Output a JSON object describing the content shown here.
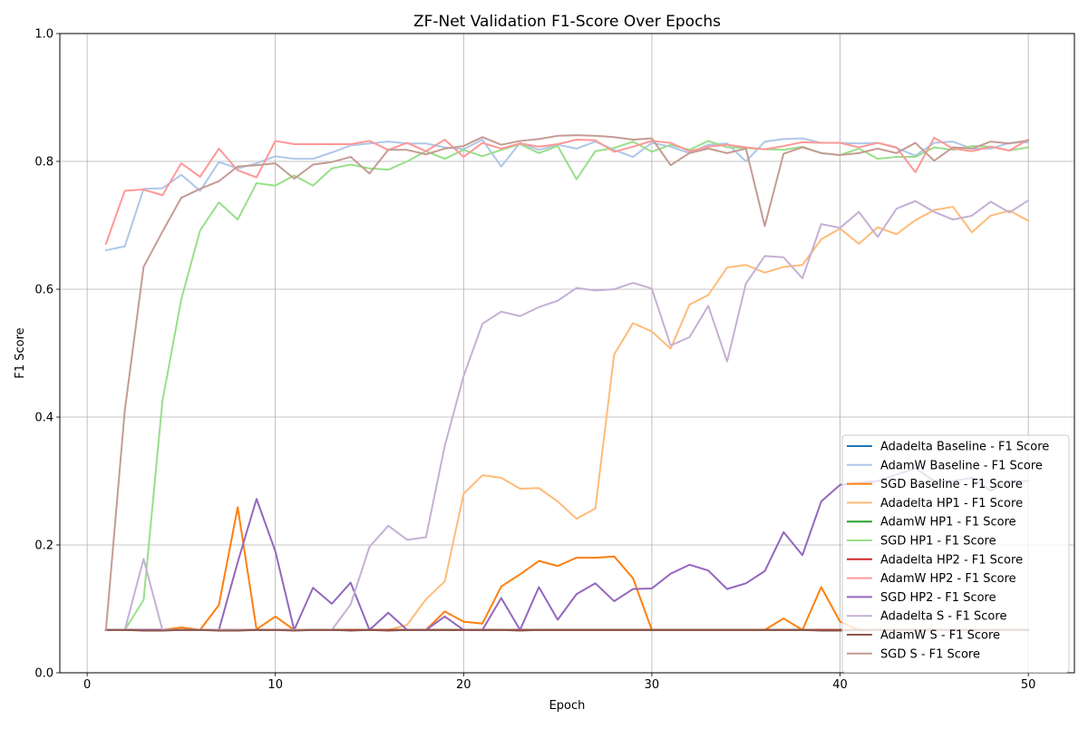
{
  "chart_data": {
    "type": "line",
    "title": "ZF-Net Validation F1-Score Over Epochs",
    "xlabel": "Epoch",
    "ylabel": "F1 Score",
    "xlim": [
      -1.45,
      52.45
    ],
    "ylim": [
      0,
      1
    ],
    "xticks": [
      0,
      10,
      20,
      30,
      40,
      50
    ],
    "yticks": [
      0.0,
      0.2,
      0.4,
      0.6,
      0.8,
      1.0
    ],
    "xtick_labels": [
      "0",
      "10",
      "20",
      "30",
      "40",
      "50"
    ],
    "ytick_labels": [
      "0.0",
      "0.2",
      "0.4",
      "0.6",
      "0.8",
      "1.0"
    ],
    "grid": true,
    "legend_position": "bottom-right",
    "x": [
      1,
      2,
      3,
      4,
      5,
      6,
      7,
      8,
      9,
      10,
      11,
      12,
      13,
      14,
      15,
      16,
      17,
      18,
      19,
      20,
      21,
      22,
      23,
      24,
      25,
      26,
      27,
      28,
      29,
      30,
      31,
      32,
      33,
      34,
      35,
      36,
      37,
      38,
      39,
      40,
      41,
      42,
      43,
      44,
      45,
      46,
      47,
      48,
      49,
      50
    ],
    "series": [
      {
        "name": "Adadelta Baseline - F1 Score",
        "color": "#1f77b4",
        "values": [
          0.067,
          0.067,
          0.067,
          0.067,
          0.067,
          0.067,
          0.067,
          0.067,
          0.067,
          0.067,
          0.067,
          0.067,
          0.067,
          0.067,
          0.067,
          0.067,
          0.067,
          0.067,
          0.067,
          0.067,
          0.067,
          0.067,
          0.067,
          0.067,
          0.067,
          0.067,
          0.067,
          0.067,
          0.067,
          0.067,
          0.067,
          0.067,
          0.067,
          0.067,
          0.067,
          0.067,
          0.067,
          0.067,
          0.067,
          0.067,
          0.067,
          0.067,
          0.067,
          0.067,
          0.067,
          0.067,
          0.067,
          0.067,
          0.067,
          0.067
        ]
      },
      {
        "name": "AdamW Baseline - F1 Score",
        "color": "#aec7e8",
        "values": [
          0.661,
          0.667,
          0.757,
          0.758,
          0.779,
          0.754,
          0.799,
          0.789,
          0.797,
          0.808,
          0.804,
          0.804,
          0.814,
          0.825,
          0.828,
          0.831,
          0.828,
          0.828,
          0.822,
          0.819,
          0.834,
          0.792,
          0.829,
          0.818,
          0.826,
          0.82,
          0.831,
          0.818,
          0.807,
          0.829,
          0.823,
          0.813,
          0.826,
          0.828,
          0.8,
          0.831,
          0.835,
          0.836,
          0.829,
          0.829,
          0.828,
          0.829,
          0.821,
          0.809,
          0.829,
          0.831,
          0.82,
          0.82,
          0.829,
          0.83
        ]
      },
      {
        "name": "SGD Baseline - F1 Score",
        "color": "#ff7f0e",
        "values": [
          0.067,
          0.067,
          0.067,
          0.067,
          0.071,
          0.067,
          0.106,
          0.259,
          0.068,
          0.088,
          0.067,
          0.067,
          0.067,
          0.067,
          0.067,
          0.067,
          0.067,
          0.067,
          0.096,
          0.08,
          0.077,
          0.135,
          0.154,
          0.175,
          0.167,
          0.18,
          0.18,
          0.182,
          0.148,
          0.067,
          0.067,
          0.067,
          0.067,
          0.067,
          0.067,
          0.067,
          0.085,
          0.067,
          0.134,
          0.08,
          0.067,
          0.067,
          0.067,
          0.067,
          0.067,
          0.067,
          0.067,
          0.067,
          0.067,
          0.067
        ]
      },
      {
        "name": "Adadelta HP1 - F1 Score",
        "color": "#ffbb78",
        "values": [
          0.067,
          0.067,
          0.067,
          0.067,
          0.067,
          0.067,
          0.067,
          0.067,
          0.067,
          0.067,
          0.067,
          0.067,
          0.067,
          0.067,
          0.067,
          0.067,
          0.075,
          0.115,
          0.143,
          0.28,
          0.309,
          0.305,
          0.288,
          0.289,
          0.268,
          0.241,
          0.257,
          0.498,
          0.547,
          0.534,
          0.507,
          0.576,
          0.591,
          0.634,
          0.638,
          0.626,
          0.635,
          0.638,
          0.678,
          0.695,
          0.671,
          0.697,
          0.686,
          0.708,
          0.724,
          0.729,
          0.689,
          0.715,
          0.723,
          0.707
        ]
      },
      {
        "name": "AdamW HP1 - F1 Score",
        "color": "#2ca02c",
        "values": [
          0.067,
          0.067,
          0.067,
          0.067,
          0.067,
          0.067,
          0.067,
          0.067,
          0.067,
          0.067,
          0.067,
          0.067,
          0.067,
          0.067,
          0.067,
          0.067,
          0.067,
          0.067,
          0.067,
          0.067,
          0.067,
          0.067,
          0.067,
          0.067,
          0.067,
          0.067,
          0.067,
          0.067,
          0.067,
          0.067,
          0.067,
          0.067,
          0.067,
          0.067,
          0.067,
          0.067,
          0.067,
          0.067,
          0.067,
          0.067,
          0.067,
          0.067,
          0.067,
          0.067,
          0.067,
          0.067,
          0.067,
          0.067,
          0.067,
          0.067
        ]
      },
      {
        "name": "SGD HP1 - F1 Score",
        "color": "#98df8a",
        "values": [
          0.067,
          0.067,
          0.114,
          0.425,
          0.584,
          0.692,
          0.736,
          0.709,
          0.766,
          0.762,
          0.778,
          0.762,
          0.789,
          0.795,
          0.789,
          0.787,
          0.8,
          0.816,
          0.804,
          0.818,
          0.808,
          0.818,
          0.827,
          0.813,
          0.824,
          0.772,
          0.816,
          0.821,
          0.831,
          0.815,
          0.826,
          0.818,
          0.832,
          0.822,
          0.821,
          0.819,
          0.818,
          0.823,
          0.813,
          0.81,
          0.82,
          0.804,
          0.807,
          0.807,
          0.822,
          0.818,
          0.824,
          0.823,
          0.817,
          0.822
        ]
      },
      {
        "name": "Adadelta HP2 - F1 Score",
        "color": "#d62728",
        "values": [
          0.067,
          0.067,
          0.067,
          0.067,
          0.067,
          0.067,
          0.067,
          0.067,
          0.067,
          0.067,
          0.067,
          0.067,
          0.067,
          0.067,
          0.067,
          0.067,
          0.067,
          0.067,
          0.067,
          0.067,
          0.067,
          0.067,
          0.067,
          0.067,
          0.067,
          0.067,
          0.067,
          0.067,
          0.067,
          0.067,
          0.067,
          0.067,
          0.067,
          0.067,
          0.067,
          0.067,
          0.067,
          0.067,
          0.067,
          0.067,
          0.067,
          0.067,
          0.067,
          0.067,
          0.067,
          0.067,
          0.067,
          0.067,
          0.067,
          0.067
        ]
      },
      {
        "name": "AdamW HP2 - F1 Score",
        "color": "#ff9896",
        "values": [
          0.671,
          0.754,
          0.756,
          0.747,
          0.797,
          0.776,
          0.82,
          0.786,
          0.775,
          0.832,
          0.827,
          0.827,
          0.827,
          0.827,
          0.832,
          0.818,
          0.829,
          0.816,
          0.834,
          0.807,
          0.829,
          0.82,
          0.828,
          0.823,
          0.827,
          0.834,
          0.833,
          0.815,
          0.823,
          0.832,
          0.829,
          0.816,
          0.823,
          0.826,
          0.822,
          0.819,
          0.824,
          0.83,
          0.829,
          0.829,
          0.822,
          0.829,
          0.822,
          0.783,
          0.837,
          0.82,
          0.816,
          0.823,
          0.817,
          0.834
        ]
      },
      {
        "name": "SGD HP2 - F1 Score",
        "color": "#9467bd",
        "values": [
          0.067,
          0.067,
          0.067,
          0.067,
          0.067,
          0.067,
          0.067,
          0.173,
          0.272,
          0.19,
          0.067,
          0.133,
          0.108,
          0.141,
          0.067,
          0.094,
          0.067,
          0.067,
          0.088,
          0.067,
          0.067,
          0.117,
          0.067,
          0.134,
          0.083,
          0.123,
          0.14,
          0.112,
          0.131,
          0.132,
          0.155,
          0.169,
          0.16,
          0.131,
          0.14,
          0.159,
          0.22,
          0.184,
          0.268,
          0.294,
          0.297,
          0.3,
          0.31,
          0.32,
          0.3,
          0.3,
          0.305,
          0.285,
          0.3,
          0.3
        ]
      },
      {
        "name": "Adadelta S - F1 Score",
        "color": "#c5b0d5",
        "values": [
          0.067,
          0.067,
          0.178,
          0.067,
          0.067,
          0.067,
          0.067,
          0.067,
          0.067,
          0.067,
          0.067,
          0.067,
          0.067,
          0.107,
          0.197,
          0.23,
          0.208,
          0.212,
          0.355,
          0.464,
          0.546,
          0.565,
          0.558,
          0.572,
          0.582,
          0.602,
          0.598,
          0.6,
          0.61,
          0.601,
          0.512,
          0.525,
          0.574,
          0.487,
          0.609,
          0.652,
          0.65,
          0.617,
          0.702,
          0.696,
          0.721,
          0.682,
          0.726,
          0.738,
          0.721,
          0.709,
          0.715,
          0.737,
          0.72,
          0.739
        ]
      },
      {
        "name": "AdamW S - F1 Score",
        "color": "#8c564b",
        "values": [
          0.067,
          0.067,
          0.066,
          0.066,
          0.067,
          0.067,
          0.066,
          0.066,
          0.067,
          0.067,
          0.066,
          0.067,
          0.067,
          0.066,
          0.067,
          0.066,
          0.067,
          0.067,
          0.067,
          0.067,
          0.067,
          0.067,
          0.066,
          0.067,
          0.067,
          0.067,
          0.067,
          0.067,
          0.067,
          0.067,
          0.067,
          0.067,
          0.067,
          0.067,
          0.067,
          0.067,
          0.067,
          0.067,
          0.066,
          0.066,
          0.067,
          0.067,
          0.067,
          0.067,
          0.067,
          0.067,
          0.067,
          0.067,
          0.067,
          0.067
        ]
      },
      {
        "name": "SGD S - F1 Score",
        "color": "#c49c94",
        "values": [
          0.067,
          0.41,
          0.635,
          0.69,
          0.743,
          0.757,
          0.769,
          0.792,
          0.794,
          0.797,
          0.773,
          0.795,
          0.799,
          0.807,
          0.781,
          0.818,
          0.818,
          0.811,
          0.82,
          0.824,
          0.838,
          0.826,
          0.832,
          0.835,
          0.84,
          0.841,
          0.84,
          0.838,
          0.834,
          0.836,
          0.794,
          0.813,
          0.82,
          0.813,
          0.82,
          0.699,
          0.812,
          0.822,
          0.813,
          0.81,
          0.813,
          0.82,
          0.813,
          0.829,
          0.801,
          0.822,
          0.82,
          0.831,
          0.828,
          0.833
        ]
      }
    ]
  }
}
